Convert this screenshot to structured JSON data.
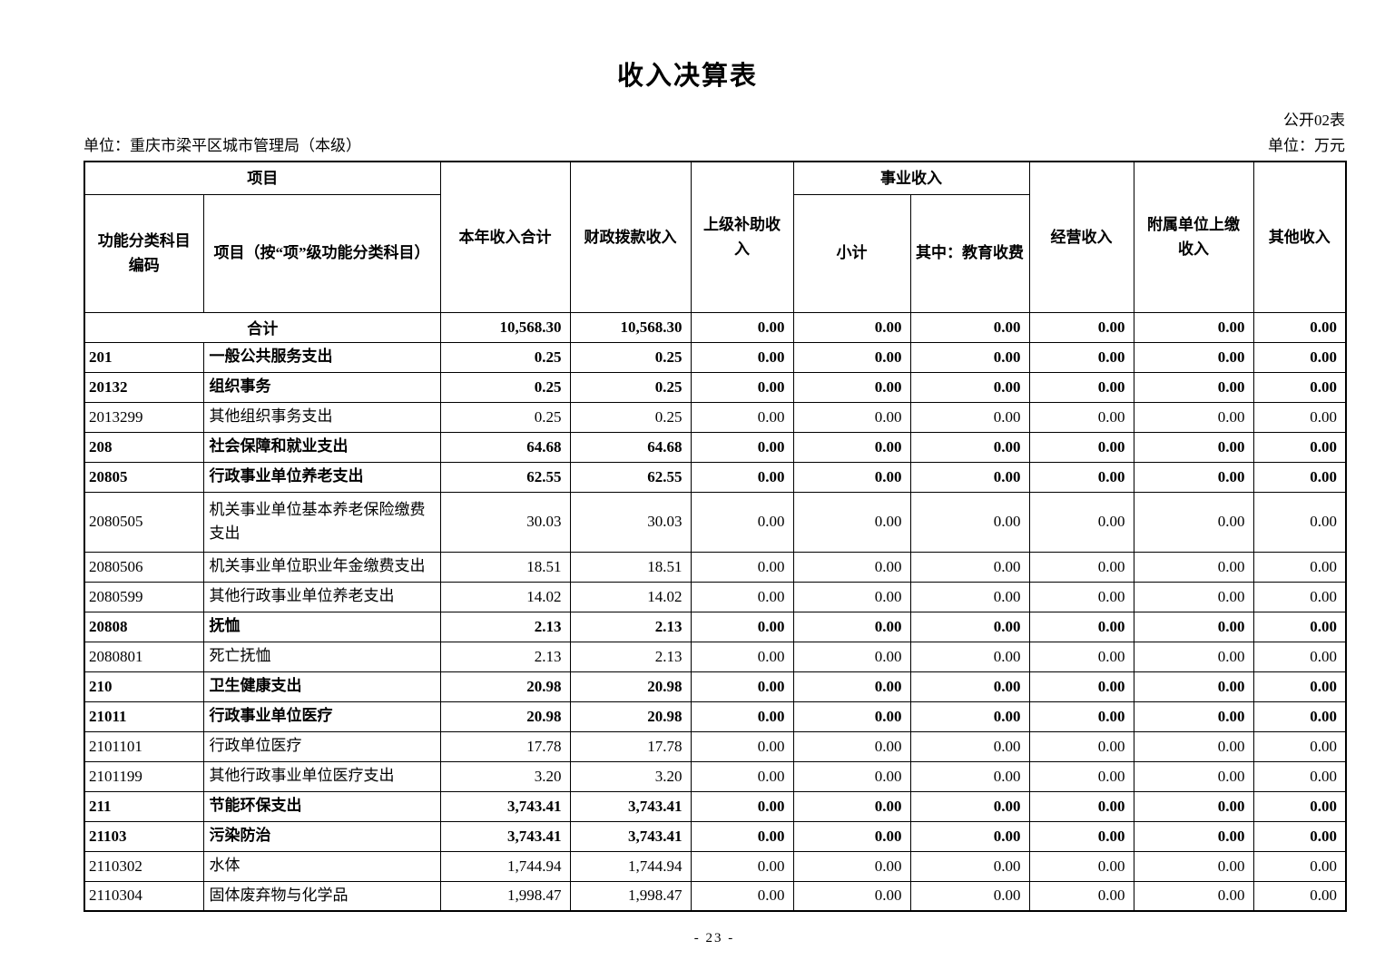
{
  "page": {
    "title": "收入决算表",
    "table_code": "公开02表",
    "org_unit": "单位：重庆市梁平区城市管理局（本级）",
    "unit_note": "单位：万元",
    "page_number": "- 23 -"
  },
  "table": {
    "header": {
      "project_group": "项目",
      "code_col": "功能分类科目\n编码",
      "name_col": "项目（按“项”级功能分类科目）",
      "total_col": "本年收入合计",
      "fiscal_col": "财政拨款收入",
      "superior_col": "上级补助收入",
      "business_group": "事业收入",
      "subtotal_col": "小计",
      "education_col": "其中：教育收费",
      "operating_col": "经营收入",
      "affiliated_col": "附属单位上缴\n收入",
      "other_col": "其他收入"
    },
    "rows": [
      {
        "code": "",
        "name": "合计",
        "merged": true,
        "bold": true,
        "values": [
          "10,568.30",
          "10,568.30",
          "0.00",
          "0.00",
          "0.00",
          "0.00",
          "0.00",
          "0.00"
        ]
      },
      {
        "code": "201",
        "name": "一般公共服务支出",
        "bold": true,
        "values": [
          "0.25",
          "0.25",
          "0.00",
          "0.00",
          "0.00",
          "0.00",
          "0.00",
          "0.00"
        ]
      },
      {
        "code": "20132",
        "name": "组织事务",
        "bold": true,
        "values": [
          "0.25",
          "0.25",
          "0.00",
          "0.00",
          "0.00",
          "0.00",
          "0.00",
          "0.00"
        ]
      },
      {
        "code": "2013299",
        "name": "其他组织事务支出",
        "bold": false,
        "values": [
          "0.25",
          "0.25",
          "0.00",
          "0.00",
          "0.00",
          "0.00",
          "0.00",
          "0.00"
        ]
      },
      {
        "code": "208",
        "name": "社会保障和就业支出",
        "bold": true,
        "values": [
          "64.68",
          "64.68",
          "0.00",
          "0.00",
          "0.00",
          "0.00",
          "0.00",
          "0.00"
        ]
      },
      {
        "code": "20805",
        "name": "行政事业单位养老支出",
        "bold": true,
        "values": [
          "62.55",
          "62.55",
          "0.00",
          "0.00",
          "0.00",
          "0.00",
          "0.00",
          "0.00"
        ]
      },
      {
        "code": "2080505",
        "name": "机关事业单位基本养老保险缴费支出",
        "bold": false,
        "tall": true,
        "values": [
          "30.03",
          "30.03",
          "0.00",
          "0.00",
          "0.00",
          "0.00",
          "0.00",
          "0.00"
        ]
      },
      {
        "code": "2080506",
        "name": "机关事业单位职业年金缴费支出",
        "bold": false,
        "values": [
          "18.51",
          "18.51",
          "0.00",
          "0.00",
          "0.00",
          "0.00",
          "0.00",
          "0.00"
        ]
      },
      {
        "code": "2080599",
        "name": "其他行政事业单位养老支出",
        "bold": false,
        "values": [
          "14.02",
          "14.02",
          "0.00",
          "0.00",
          "0.00",
          "0.00",
          "0.00",
          "0.00"
        ]
      },
      {
        "code": "20808",
        "name": "抚恤",
        "bold": true,
        "values": [
          "2.13",
          "2.13",
          "0.00",
          "0.00",
          "0.00",
          "0.00",
          "0.00",
          "0.00"
        ]
      },
      {
        "code": "2080801",
        "name": "死亡抚恤",
        "bold": false,
        "values": [
          "2.13",
          "2.13",
          "0.00",
          "0.00",
          "0.00",
          "0.00",
          "0.00",
          "0.00"
        ]
      },
      {
        "code": "210",
        "name": "卫生健康支出",
        "bold": true,
        "values": [
          "20.98",
          "20.98",
          "0.00",
          "0.00",
          "0.00",
          "0.00",
          "0.00",
          "0.00"
        ]
      },
      {
        "code": "21011",
        "name": "行政事业单位医疗",
        "bold": true,
        "values": [
          "20.98",
          "20.98",
          "0.00",
          "0.00",
          "0.00",
          "0.00",
          "0.00",
          "0.00"
        ]
      },
      {
        "code": "2101101",
        "name": "行政单位医疗",
        "bold": false,
        "values": [
          "17.78",
          "17.78",
          "0.00",
          "0.00",
          "0.00",
          "0.00",
          "0.00",
          "0.00"
        ]
      },
      {
        "code": "2101199",
        "name": "其他行政事业单位医疗支出",
        "bold": false,
        "values": [
          "3.20",
          "3.20",
          "0.00",
          "0.00",
          "0.00",
          "0.00",
          "0.00",
          "0.00"
        ]
      },
      {
        "code": "211",
        "name": "节能环保支出",
        "bold": true,
        "values": [
          "3,743.41",
          "3,743.41",
          "0.00",
          "0.00",
          "0.00",
          "0.00",
          "0.00",
          "0.00"
        ]
      },
      {
        "code": "21103",
        "name": "污染防治",
        "bold": true,
        "values": [
          "3,743.41",
          "3,743.41",
          "0.00",
          "0.00",
          "0.00",
          "0.00",
          "0.00",
          "0.00"
        ]
      },
      {
        "code": "2110302",
        "name": "水体",
        "bold": false,
        "values": [
          "1,744.94",
          "1,744.94",
          "0.00",
          "0.00",
          "0.00",
          "0.00",
          "0.00",
          "0.00"
        ]
      },
      {
        "code": "2110304",
        "name": "固体废弃物与化学品",
        "bold": false,
        "values": [
          "1,998.47",
          "1,998.47",
          "0.00",
          "0.00",
          "0.00",
          "0.00",
          "0.00",
          "0.00"
        ]
      }
    ]
  }
}
